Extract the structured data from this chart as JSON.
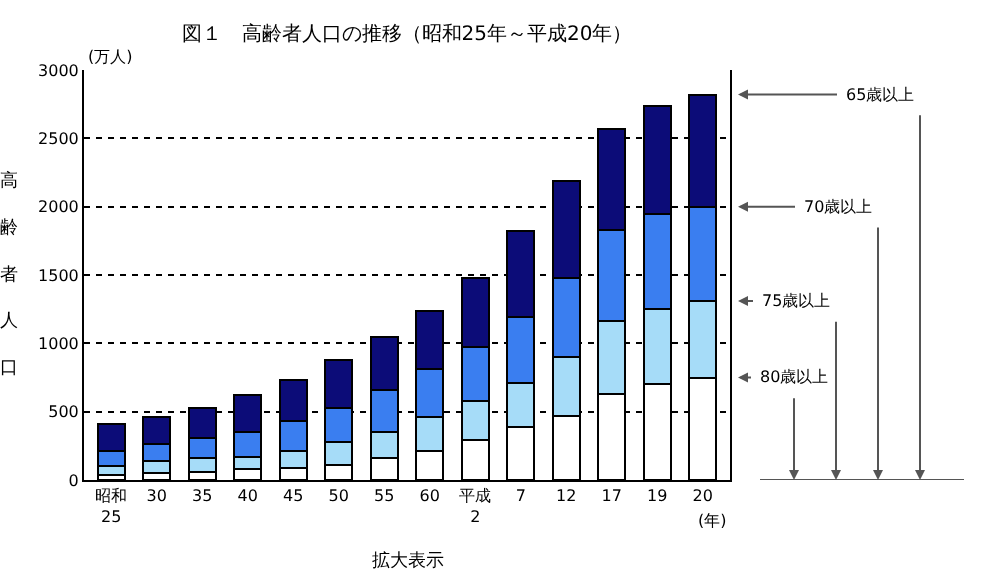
{
  "chart_data": {
    "type": "bar",
    "stacked": true,
    "title": "図１　高齢者人口の推移（昭和25年～平成20年）",
    "ylabel": "高齢者人口",
    "categories": [
      "昭和25",
      "30",
      "35",
      "40",
      "45",
      "50",
      "55",
      "60",
      "平成2",
      "7",
      "12",
      "17",
      "19",
      "20"
    ],
    "series": [
      {
        "color": "#ffffff",
        "values": [
          40,
          50,
          60,
          80,
          90,
          110,
          160,
          210,
          290,
          390,
          470,
          630,
          700,
          750
        ]
      },
      {
        "color": "#a6dcf8",
        "values": [
          60,
          90,
          100,
          90,
          120,
          170,
          190,
          250,
          290,
          320,
          430,
          530,
          550,
          560
        ]
      },
      {
        "color": "#3a7ef0",
        "values": [
          110,
          120,
          150,
          180,
          220,
          250,
          310,
          350,
          390,
          480,
          580,
          670,
          700,
          690
        ]
      },
      {
        "color": "#0c0c78",
        "values": [
          200,
          200,
          220,
          270,
          300,
          350,
          390,
          430,
          510,
          630,
          710,
          740,
          790,
          820
        ]
      }
    ],
    "ylim": [
      0,
      3000
    ],
    "yticks": [
      0,
      500,
      1000,
      1500,
      2000,
      2500,
      3000
    ],
    "grid": "y",
    "annotations": [
      "(万人)",
      "(年)",
      "拡大表示",
      "65歳以上",
      "70歳以上",
      "75歳以上",
      "80歳以上"
    ]
  }
}
